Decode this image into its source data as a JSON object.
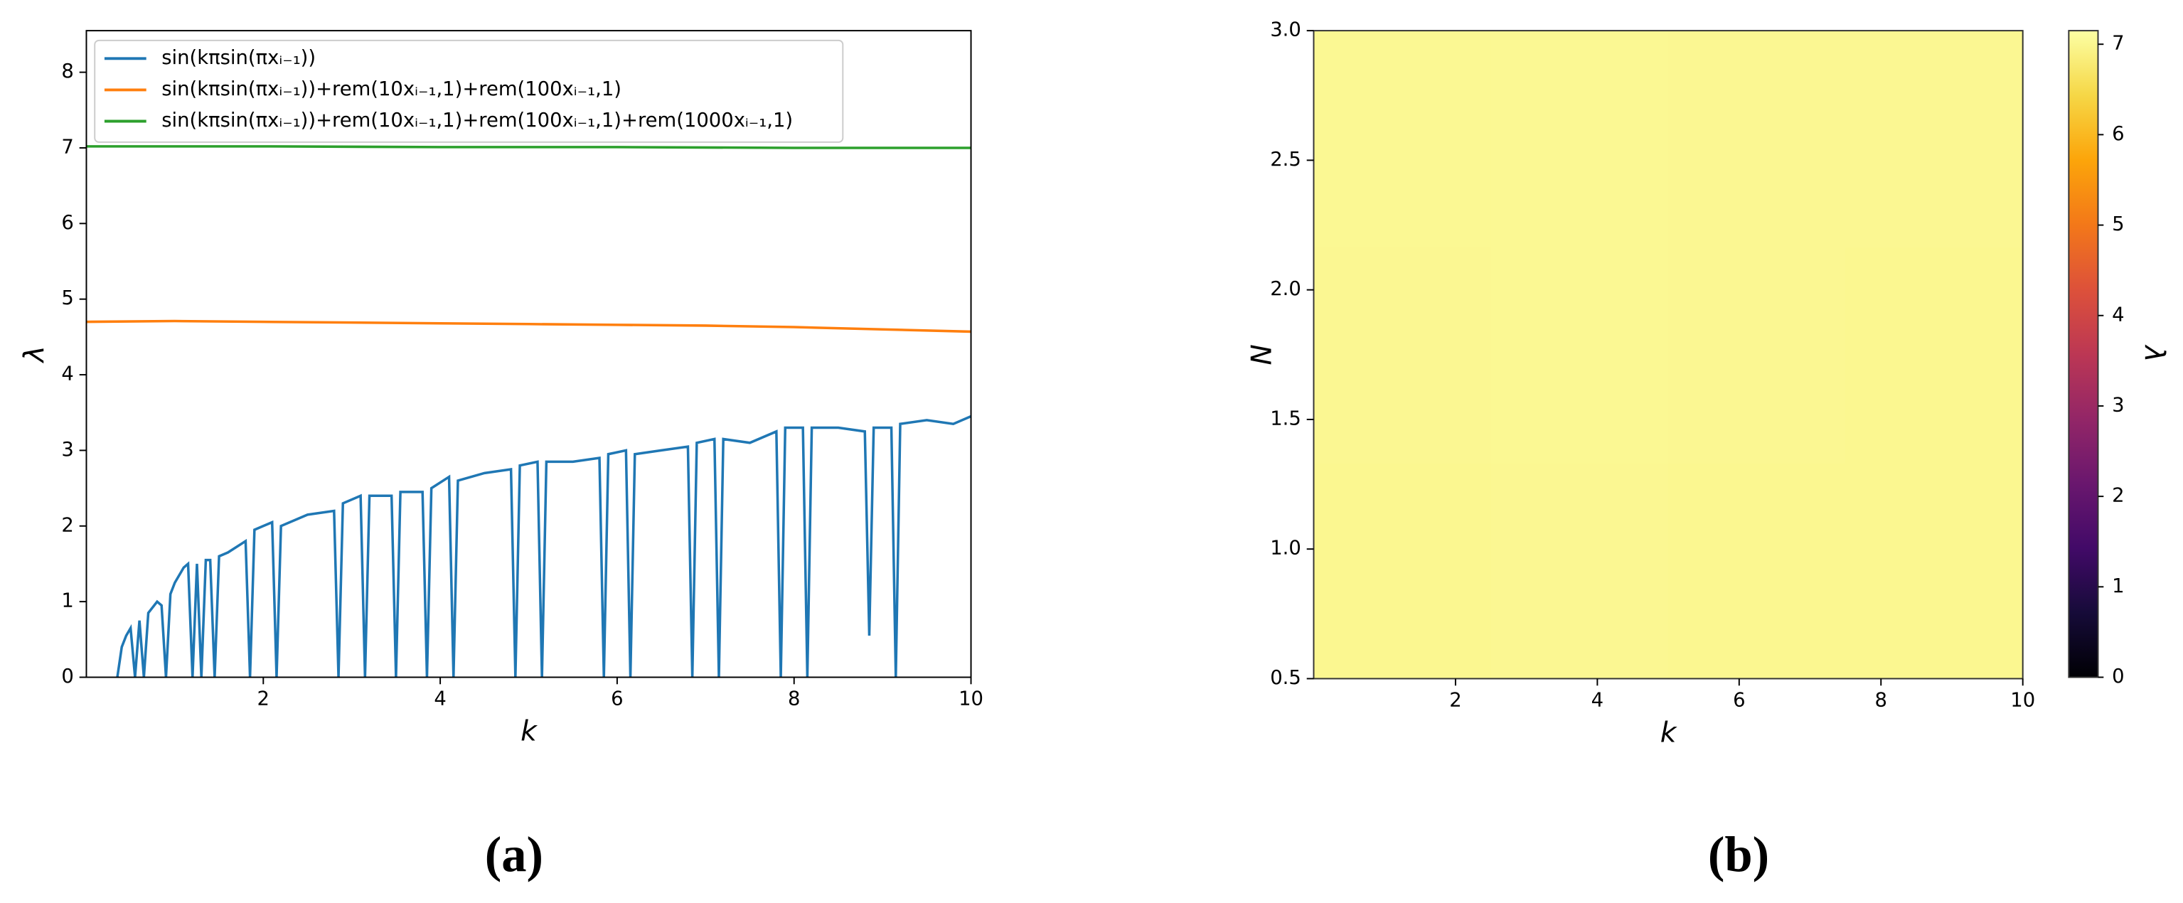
{
  "chart_data": [
    {
      "type": "line",
      "panel": "(a)",
      "xlabel": "k",
      "ylabel": "λ",
      "xlim": [
        0,
        10
      ],
      "ylim": [
        0,
        8.55
      ],
      "xticks": [
        2,
        4,
        6,
        8,
        10
      ],
      "yticks": [
        0,
        1,
        2,
        3,
        4,
        5,
        6,
        7,
        8
      ],
      "legend": "upper left",
      "series": [
        {
          "name": "sin(kπsin(πxᵢ₋₁))",
          "color": "#1f77b4",
          "x": [
            0.35,
            0.4,
            0.45,
            0.5,
            0.55,
            0.6,
            0.65,
            0.7,
            0.8,
            0.85,
            0.9,
            0.95,
            1.0,
            1.1,
            1.15,
            1.2,
            1.25,
            1.3,
            1.35,
            1.4,
            1.45,
            1.5,
            1.6,
            1.8,
            1.85,
            1.9,
            2.0,
            2.1,
            2.15,
            2.2,
            2.5,
            2.8,
            2.85,
            2.9,
            3.1,
            3.15,
            3.2,
            3.45,
            3.5,
            3.55,
            3.8,
            3.85,
            3.9,
            4.1,
            4.15,
            4.2,
            4.5,
            4.8,
            4.85,
            4.9,
            5.1,
            5.15,
            5.2,
            5.5,
            5.8,
            5.85,
            5.9,
            6.1,
            6.15,
            6.2,
            6.5,
            6.8,
            6.85,
            6.9,
            7.1,
            7.15,
            7.2,
            7.5,
            7.8,
            7.85,
            7.9,
            8.1,
            8.15,
            8.2,
            8.5,
            8.8,
            8.85,
            8.9,
            9.1,
            9.15,
            9.2,
            9.5,
            9.8,
            10
          ],
          "values": [
            0,
            0.4,
            0.55,
            0.65,
            0,
            0.75,
            0,
            0.85,
            1.0,
            0.95,
            0,
            1.1,
            1.25,
            1.45,
            1.5,
            0,
            1.5,
            0,
            1.55,
            1.55,
            0,
            1.6,
            1.65,
            1.8,
            0,
            1.95,
            2.0,
            2.05,
            0,
            2.0,
            2.15,
            2.2,
            0,
            2.3,
            2.4,
            0,
            2.4,
            2.4,
            0,
            2.45,
            2.45,
            0,
            2.5,
            2.65,
            0,
            2.6,
            2.7,
            2.75,
            0,
            2.8,
            2.85,
            0,
            2.85,
            2.85,
            2.9,
            0,
            2.95,
            3.0,
            0,
            2.95,
            3.0,
            3.05,
            0,
            3.1,
            3.15,
            0,
            3.15,
            3.1,
            3.25,
            0,
            3.3,
            3.3,
            0,
            3.3,
            3.3,
            3.25,
            0.55,
            3.3,
            3.3,
            0,
            3.35,
            3.4,
            3.35,
            3.45
          ]
        },
        {
          "name": "sin(kπsin(πxᵢ₋₁))+rem(10xᵢ₋₁,1)+rem(100xᵢ₋₁,1)",
          "color": "#ff7f0e",
          "x": [
            0,
            1,
            2,
            3,
            4,
            5,
            6,
            7,
            8,
            9,
            10
          ],
          "values": [
            4.7,
            4.71,
            4.7,
            4.69,
            4.68,
            4.67,
            4.66,
            4.65,
            4.63,
            4.6,
            4.57
          ]
        },
        {
          "name": "sin(kπsin(πxᵢ₋₁))+rem(10xᵢ₋₁,1)+rem(100xᵢ₋₁,1)+rem(1000xᵢ₋₁,1)",
          "color": "#2ca02c",
          "x": [
            0,
            2,
            4,
            6,
            8,
            10
          ],
          "values": [
            7.02,
            7.02,
            7.01,
            7.01,
            7.0,
            7.0
          ]
        }
      ]
    },
    {
      "type": "heatmap",
      "panel": "(b)",
      "xlabel": "k",
      "ylabel": "N",
      "colorbar_label": "λ",
      "colormap": "inferno",
      "xlim": [
        0,
        10
      ],
      "ylim": [
        0.5,
        3.0
      ],
      "xticks": [
        2,
        4,
        6,
        8,
        10
      ],
      "yticks": [
        0.5,
        {
          "value": 1.0,
          "label": "1.0"
        },
        1.5,
        {
          "value": 2.0,
          "label": "2.0"
        },
        2.5,
        {
          "value": 3.0,
          "label": "3.0"
        }
      ],
      "clim": [
        0,
        7.15
      ],
      "cticks": [
        0,
        1,
        2,
        3,
        4,
        5,
        6,
        7
      ],
      "z": [
        [
          7.0,
          7.01,
          7.0,
          7.0
        ],
        [
          7.01,
          7.02,
          7.01,
          7.0
        ],
        [
          7.02,
          7.02,
          7.01,
          7.01
        ]
      ]
    }
  ]
}
